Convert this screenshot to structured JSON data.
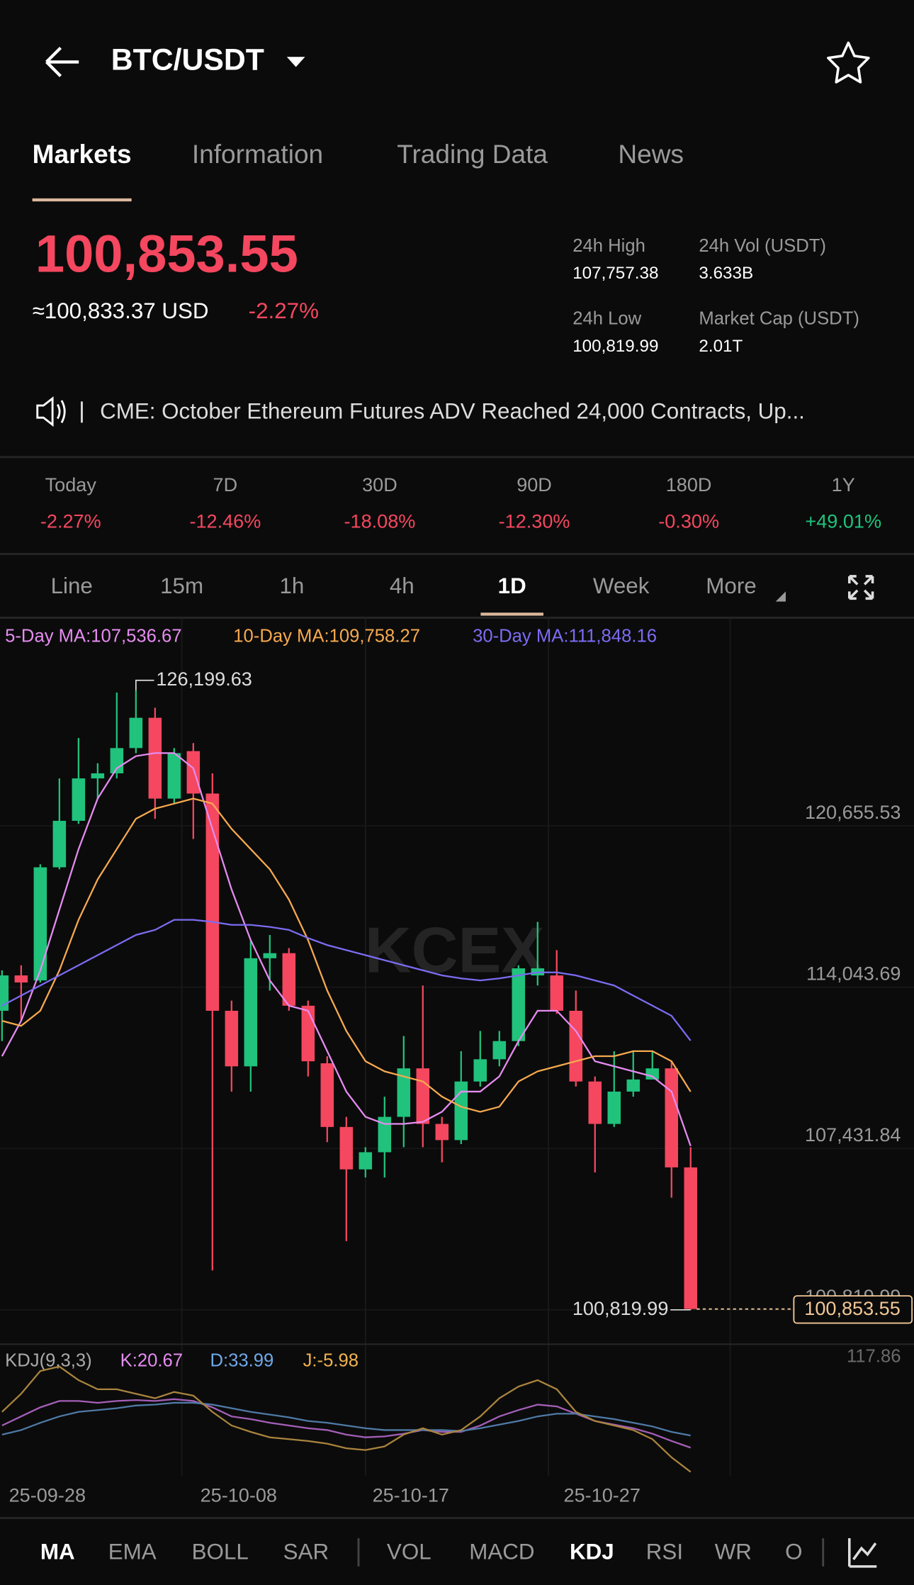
{
  "header": {
    "title": "BTC/USDT"
  },
  "tabs": {
    "items": [
      "Markets",
      "Information",
      "Trading Data",
      "News"
    ],
    "active": 0
  },
  "price": {
    "last": "100,853.55",
    "usd": "≈100,833.37 USD",
    "change": "-2.27%"
  },
  "stats": [
    {
      "label": "24h High",
      "value": "107,757.38"
    },
    {
      "label": "24h Vol (USDT)",
      "value": "3.633B"
    },
    {
      "label": "24h Low",
      "value": "100,819.99"
    },
    {
      "label": "Market Cap (USDT)",
      "value": "2.01T"
    }
  ],
  "news": "CME: October Ethereum Futures ADV Reached 24,000 Contracts, Up...",
  "periods": [
    {
      "label": "Today",
      "change": "-2.27%"
    },
    {
      "label": "7D",
      "change": "-12.46%"
    },
    {
      "label": "30D",
      "change": "-18.08%"
    },
    {
      "label": "90D",
      "change": "-12.30%"
    },
    {
      "label": "180D",
      "change": "-0.30%"
    },
    {
      "label": "1Y",
      "change": "+49.01%"
    }
  ],
  "intervals": {
    "items": [
      "Line",
      "15m",
      "1h",
      "4h",
      "1D",
      "Week",
      "More"
    ],
    "active": 4
  },
  "indicators": {
    "items": [
      "MA",
      "EMA",
      "BOLL",
      "SAR",
      "VOL",
      "MACD",
      "KDJ",
      "RSI",
      "WR",
      "O"
    ],
    "active": [
      0,
      6
    ]
  },
  "watermark": "KCEX",
  "chart_data": [
    {
      "type": "candlestick",
      "up_color": "#20c27c",
      "down_color": "#f5475f",
      "categories": [
        null,
        null,
        "25-09-28",
        null,
        null,
        null,
        null,
        null,
        null,
        null,
        null,
        null,
        "25-10-08",
        null,
        null,
        null,
        null,
        null,
        null,
        null,
        null,
        "25-10-17",
        null,
        null,
        null,
        null,
        null,
        null,
        null,
        null,
        null,
        "25-10-27",
        null,
        null,
        null,
        null,
        null
      ],
      "open": [
        113074,
        114523,
        114316,
        118953,
        120858,
        122596,
        122803,
        123838,
        125080,
        121768,
        123714,
        121975,
        113074,
        110797,
        115227,
        115434,
        113281,
        110922,
        108313,
        106575,
        107278,
        108727,
        110715,
        108438,
        107775,
        110176,
        111087,
        111832,
        114523,
        114523,
        113074,
        110176,
        108438,
        109762,
        110259,
        110715,
        106657
      ],
      "high": [
        114730,
        114937,
        119077,
        122596,
        124252,
        123217,
        126115,
        126199.63,
        125494,
        123838,
        124045,
        122803,
        113488,
        115972,
        116179,
        115641,
        113488,
        111211,
        108727,
        107485,
        109555,
        112039,
        114109,
        108727,
        111418,
        112246,
        112246,
        114937,
        116718,
        115558,
        113902,
        110383,
        111418,
        111418,
        111418,
        111004,
        107485
      ],
      "low": [
        111832,
        112660,
        114234,
        118870,
        120733,
        121768,
        122596,
        123631,
        120940,
        121561,
        120112,
        102435,
        109762,
        109762,
        113902,
        113074,
        110383,
        107692,
        103635,
        106243,
        106243,
        107485,
        107485,
        106864,
        107610,
        109969,
        110797,
        111625,
        114109,
        112950,
        109969,
        106450,
        108313,
        109555,
        110383,
        105415,
        100819.99
      ],
      "close": [
        114523,
        114234,
        118953,
        120858,
        122596,
        122803,
        123838,
        125080,
        121768,
        123631,
        121975,
        113074,
        110797,
        115227,
        115434,
        113281,
        111004,
        108313,
        106575,
        107278,
        108727,
        110715,
        108438,
        107775,
        110176,
        111087,
        111832,
        114813,
        114813,
        113074,
        110176,
        108438,
        109762,
        110259,
        110715,
        106657,
        100853.55
      ],
      "ylim": [
        99495,
        127980
      ],
      "yticks": [
        {
          "value": 120655.53,
          "label": "120,655.53"
        },
        {
          "value": 114043.69,
          "label": "114,043.69"
        },
        {
          "value": 107431.84,
          "label": "107,431.84"
        },
        {
          "value": 100819.99,
          "label": "100,819.99"
        }
      ],
      "high_label": {
        "value": 126199.63,
        "label": "126,199.63"
      },
      "low_label": {
        "value": 100819.99,
        "label": "100,819.99"
      },
      "last_price": {
        "value": 100853.55,
        "label": "100,853.55"
      },
      "series": [
        {
          "name": "5-Day MA:107,536.67",
          "color": "#e58cf0",
          "values": [
            111211,
            112660,
            114730,
            117214,
            119698,
            121768,
            123010,
            123507,
            123631,
            123631,
            123010,
            120526,
            118042,
            115972,
            114316,
            113281,
            113074,
            111418,
            109762,
            108727,
            108438,
            108438,
            108520,
            108934,
            109762,
            109762,
            110383,
            111832,
            113074,
            113074,
            112246,
            111004,
            110797,
            110590,
            110383,
            109762,
            107536.67
          ]
        },
        {
          "name": "10-Day MA:109,758.27",
          "color": "#f6a94f",
          "values": [
            112660,
            112453,
            113074,
            114730,
            116800,
            118456,
            119698,
            120940,
            121354,
            121561,
            121768,
            121561,
            120526,
            119698,
            118870,
            117628,
            115972,
            113902,
            112246,
            111004,
            110590,
            110383,
            110176,
            109555,
            109141,
            108934,
            109141,
            110176,
            110590,
            110797,
            111004,
            111211,
            111211,
            111418,
            111418,
            111004,
            109758.27
          ]
        },
        {
          "name": "30-Day MA:111,848.16",
          "color": "#7b6cf2",
          "values": [
            113281,
            113695,
            114109,
            114523,
            114937,
            115351,
            115765,
            116179,
            116386,
            116800,
            116800,
            116718,
            116593,
            116593,
            116511,
            116386,
            116055,
            115765,
            115558,
            115351,
            115144,
            114937,
            114730,
            114523,
            114399,
            114316,
            114399,
            114523,
            114648,
            114648,
            114523,
            114316,
            114109,
            113695,
            113281,
            112867,
            111848.16
          ]
        }
      ]
    },
    {
      "type": "line",
      "title": "KDJ(9,3,3)",
      "ylim": [
        -10,
        117.86
      ],
      "yticks": [
        117.86
      ],
      "series": [
        {
          "name": "K:20.67",
          "color": "#e58cf0",
          "line_color": "#a45fb8",
          "values": [
            45,
            55,
            65,
            72,
            72,
            70,
            72,
            73,
            72,
            74,
            72,
            65,
            55,
            52,
            48,
            45,
            42,
            40,
            35,
            32,
            33,
            36,
            40,
            38,
            38,
            45,
            55,
            62,
            68,
            66,
            58,
            50,
            46,
            42,
            36,
            28,
            20.67
          ]
        },
        {
          "name": "D:33.99",
          "color": "#6fa8e8",
          "line_color": "#4f7aa6",
          "values": [
            35,
            40,
            48,
            55,
            60,
            62,
            64,
            67,
            68,
            70,
            70,
            68,
            64,
            60,
            57,
            54,
            50,
            48,
            45,
            42,
            40,
            40,
            40,
            40,
            39,
            42,
            46,
            50,
            55,
            58,
            58,
            55,
            52,
            48,
            44,
            38,
            33.99
          ]
        },
        {
          "name": "J:-5.98",
          "color": "#f0b24e",
          "line_color": "#a9843e",
          "values": [
            60,
            80,
            105,
            110,
            95,
            85,
            85,
            80,
            75,
            82,
            78,
            60,
            45,
            38,
            32,
            30,
            28,
            25,
            20,
            18,
            22,
            35,
            42,
            35,
            40,
            55,
            75,
            88,
            95,
            85,
            60,
            50,
            45,
            40,
            30,
            10,
            -5.98
          ]
        }
      ]
    }
  ]
}
